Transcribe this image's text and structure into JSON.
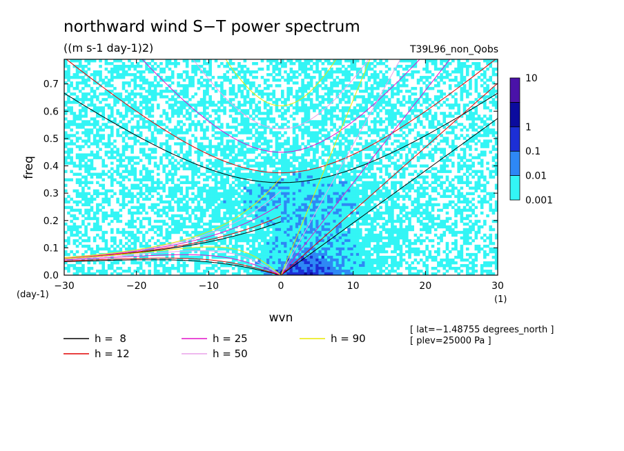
{
  "chart_data": {
    "type": "heatmap",
    "title": "northward wind S−T power spectrum",
    "subtitle": "((m s-1 day-1)2)",
    "run_label": "T39L96_non_Qobs",
    "xlabel": "wvn",
    "x_unit": "(1)",
    "ylabel": "freq",
    "y_unit": "(day-1)",
    "xlim": [
      -30,
      30
    ],
    "ylim": [
      0,
      0.79
    ],
    "x_ticks": [
      -30,
      -20,
      -10,
      0,
      10,
      20,
      30
    ],
    "y_ticks": [
      0.0,
      0.1,
      0.2,
      0.3,
      0.4,
      0.5,
      0.6,
      0.7
    ],
    "y_tick_labels": [
      "0.0",
      "0.1",
      "0.2",
      "0.3",
      "0.4",
      "0.5",
      "0.6",
      "0.7"
    ],
    "x_tick_labels": [
      "−30",
      "−20",
      "−10",
      "0",
      "10",
      "20",
      "30"
    ],
    "color_levels": [
      {
        "label": "0.001",
        "color": "#33f5f5"
      },
      {
        "label": "0.01",
        "color": "#2e88f5"
      },
      {
        "label": "0.1",
        "color": "#1c2fd6"
      },
      {
        "label": "1",
        "color": "#0b0b9e"
      },
      {
        "label": "10",
        "color": "#4a12a8"
      }
    ],
    "below_lowest_color": "#ffffff",
    "dispersion_curves": [
      {
        "label": "h =  8",
        "h": 8,
        "color": "#000000"
      },
      {
        "label": "h = 12",
        "h": 12,
        "color": "#e00000"
      },
      {
        "label": "h = 25",
        "h": 25,
        "color": "#e010c8"
      },
      {
        "label": "h = 50",
        "h": 50,
        "color": "#e9a0e9"
      },
      {
        "label": "h = 90",
        "h": 90,
        "color": "#e9e900"
      }
    ],
    "annotations": [
      "[ lat=−1.48755 degrees_north ]",
      "[ plev=25000 Pa ]"
    ]
  }
}
